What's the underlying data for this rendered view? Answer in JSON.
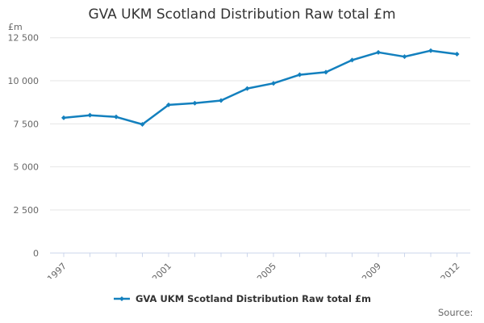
{
  "title": "GVA UKM Scotland Distribution Raw total £m",
  "y_axis_unit": "£m",
  "source_label": "Source:",
  "legend": {
    "label": "GVA UKM Scotland Distribution Raw total £m"
  },
  "colors": {
    "series": "#1380BE",
    "title_text": "#333333",
    "axis_label": "#666666",
    "gridline": "#E6E6E6",
    "axis_line": "#CCD6EB",
    "legend_text": "#333333",
    "background": "#FFFFFF"
  },
  "chart_data": {
    "type": "line",
    "title": "GVA UKM Scotland Distribution Raw total £m",
    "xlabel": "",
    "ylabel": "£m",
    "ylim": [
      0,
      12500
    ],
    "y_tick_step": 2500,
    "grid": "horizontal",
    "legend_position": "bottom",
    "x": [
      1997,
      1998,
      1999,
      2000,
      2001,
      2002,
      2003,
      2004,
      2005,
      2006,
      2007,
      2008,
      2009,
      2010,
      2011,
      2012
    ],
    "x_labeled_ticks": [
      1997,
      2001,
      2005,
      2009,
      2012
    ],
    "y_ticks": [
      {
        "value": 0,
        "label": "0"
      },
      {
        "value": 2500,
        "label": "2 500"
      },
      {
        "value": 5000,
        "label": "5 000"
      },
      {
        "value": 7500,
        "label": "7 500"
      },
      {
        "value": 10000,
        "label": "10 000"
      },
      {
        "value": 12500,
        "label": "12 500"
      }
    ],
    "series": [
      {
        "name": "GVA UKM Scotland Distribution Raw total £m",
        "values": [
          7850,
          8000,
          7900,
          7470,
          8600,
          8700,
          8850,
          9550,
          9850,
          10350,
          10500,
          11200,
          11650,
          11400,
          11750,
          11550
        ]
      }
    ]
  }
}
